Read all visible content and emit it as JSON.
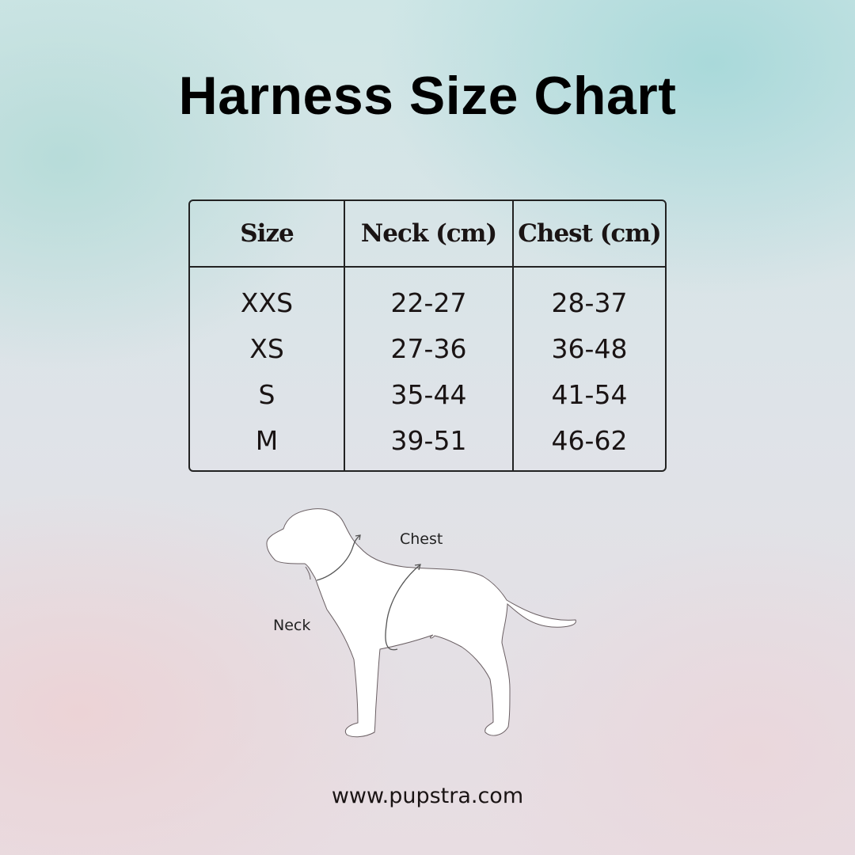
{
  "title": "Harness Size Chart",
  "table": {
    "headers": [
      "Size",
      "Neck (cm)",
      "Chest (cm)"
    ],
    "rows": [
      {
        "size": "XXS",
        "neck": "22-27",
        "chest": "28-37"
      },
      {
        "size": "XS",
        "neck": "27-36",
        "chest": "36-48"
      },
      {
        "size": "S",
        "neck": "35-44",
        "chest": "41-54"
      },
      {
        "size": "M",
        "neck": "39-51",
        "chest": "46-62"
      }
    ]
  },
  "diagram": {
    "chest_label": "Chest",
    "neck_label": "Neck"
  },
  "footer": {
    "url": "www.pupstra.com"
  }
}
